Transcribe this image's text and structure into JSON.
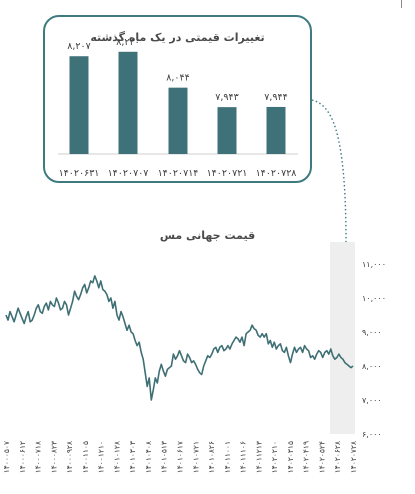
{
  "colors": {
    "bar": "#3f7278",
    "line": "#3e6f74",
    "highlight": "#eeeeee",
    "connector": "#3e7b80",
    "text": "#4a4a4a"
  },
  "chart_data": [
    {
      "type": "bar",
      "title": "تغییرات قیمتی در یک ماه گذشته",
      "categories": [
        "۱۴۰۲۰۶۳۱",
        "۱۴۰۲۰۷۰۷",
        "۱۴۰۲۰۷۱۴",
        "۱۴۰۲۰۷۲۱",
        "۱۴۰۲۰۷۲۸"
      ],
      "values": [
        8207,
        8230,
        8044,
        7943,
        7944
      ],
      "value_labels": [
        "۸,۲۰۷",
        "۸,۲۳۰",
        "۸,۰۴۴",
        "۷,۹۴۳",
        "۷,۹۴۴"
      ],
      "ylim": [
        7700,
        8260
      ]
    },
    {
      "type": "line",
      "title": "قیمت جهانی مس",
      "ylim": [
        6000,
        11000
      ],
      "yticks": [
        6000,
        7000,
        8000,
        9000,
        10000,
        11000
      ],
      "ytick_labels": [
        "۶,۰۰۰",
        "۷,۰۰۰",
        "۸,۰۰۰",
        "۹,۰۰۰",
        "۱۰,۰۰۰",
        "۱۱,۰۰۰"
      ],
      "x_tick_labels": [
        "۱۴۰۰۰۵۰۷",
        "۱۴۰۰۰۶۱۲",
        "۱۴۰۰۰۷۱۸",
        "۱۴۰۰۰۸۲۳",
        "۱۴۰۰۰۹۲۸",
        "۱۴۰۰۱۱۰۵",
        "۱۴۰۰۱۲۱۰",
        "۱۴۰۱۰۱۲۸",
        "۱۴۰۱۰۳۰۳",
        "۱۴۰۱۰۴۰۸",
        "۱۴۰۱۰۵۱۳",
        "۱۴۰۱۰۶۱۷",
        "۱۴۰۱۰۷۲۱",
        "۱۴۰۱۰۸۲۶",
        "۱۴۰۱۱۰۰۱",
        "۱۴۰۱۱۱۰۶",
        "۱۴۰۱۱۲۱۳",
        "۱۴۰۲۰۲۱۰",
        "۱۴۰۲۰۳۱۵",
        "۱۴۰۲۰۴۱۹",
        "۱۴۰۲۰۵۲۴",
        "۱۴۰۲۰۶۲۸",
        "۱۴۰۲۰۷۲۸"
      ],
      "highlight": "last month",
      "series": [
        {
          "values": [
            9500,
            9350,
            9600,
            9450,
            9300,
            9500,
            9700,
            9550,
            9400,
            9250,
            9450,
            9600,
            9300,
            9350,
            9500,
            9700,
            9800,
            9600,
            9550,
            9750,
            9850,
            9650,
            9900,
            9800,
            9750,
            10000,
            9850,
            9650,
            9700,
            9900,
            9800,
            9500,
            9700,
            9900,
            10200,
            10050,
            9950,
            10100,
            10300,
            10400,
            10150,
            10300,
            10500,
            10450,
            10650,
            10500,
            10300,
            10500,
            10250,
            10200,
            10100,
            9900,
            10000,
            9700,
            9900,
            9500,
            9350,
            9600,
            9450,
            9250,
            9050,
            9200,
            9000,
            8950,
            8750,
            8600,
            8700,
            8400,
            8200,
            7800,
            7400,
            7650,
            7000,
            7300,
            7650,
            7500,
            7850,
            8050,
            7850,
            7700,
            7900,
            7950,
            8000,
            8350,
            8200,
            8300,
            8450,
            8300,
            8150,
            8100,
            8350,
            8250,
            8100,
            8150,
            8050,
            7900,
            7800,
            7750,
            8000,
            8150,
            8300,
            8250,
            8350,
            8500,
            8550,
            8400,
            8550,
            8600,
            8450,
            8500,
            8600,
            8500,
            8650,
            8750,
            8850,
            8800,
            8700,
            8850,
            8600,
            8950,
            9000,
            9050,
            9200,
            9100,
            9050,
            8900,
            8850,
            8950,
            8850,
            8950,
            8650,
            8750,
            8550,
            8700,
            8500,
            8600,
            8650,
            8450,
            8400,
            8550,
            8300,
            8100,
            8350,
            8550,
            8400,
            8500,
            8550,
            8400,
            8600,
            8500,
            8450,
            8250,
            8300,
            8200,
            8350,
            8450,
            8400,
            8250,
            8400,
            8450,
            8350,
            8500,
            8300,
            8200,
            8250,
            8350,
            8250,
            8200,
            8100,
            8050,
            8000,
            7950,
            8000
          ]
        }
      ]
    }
  ]
}
